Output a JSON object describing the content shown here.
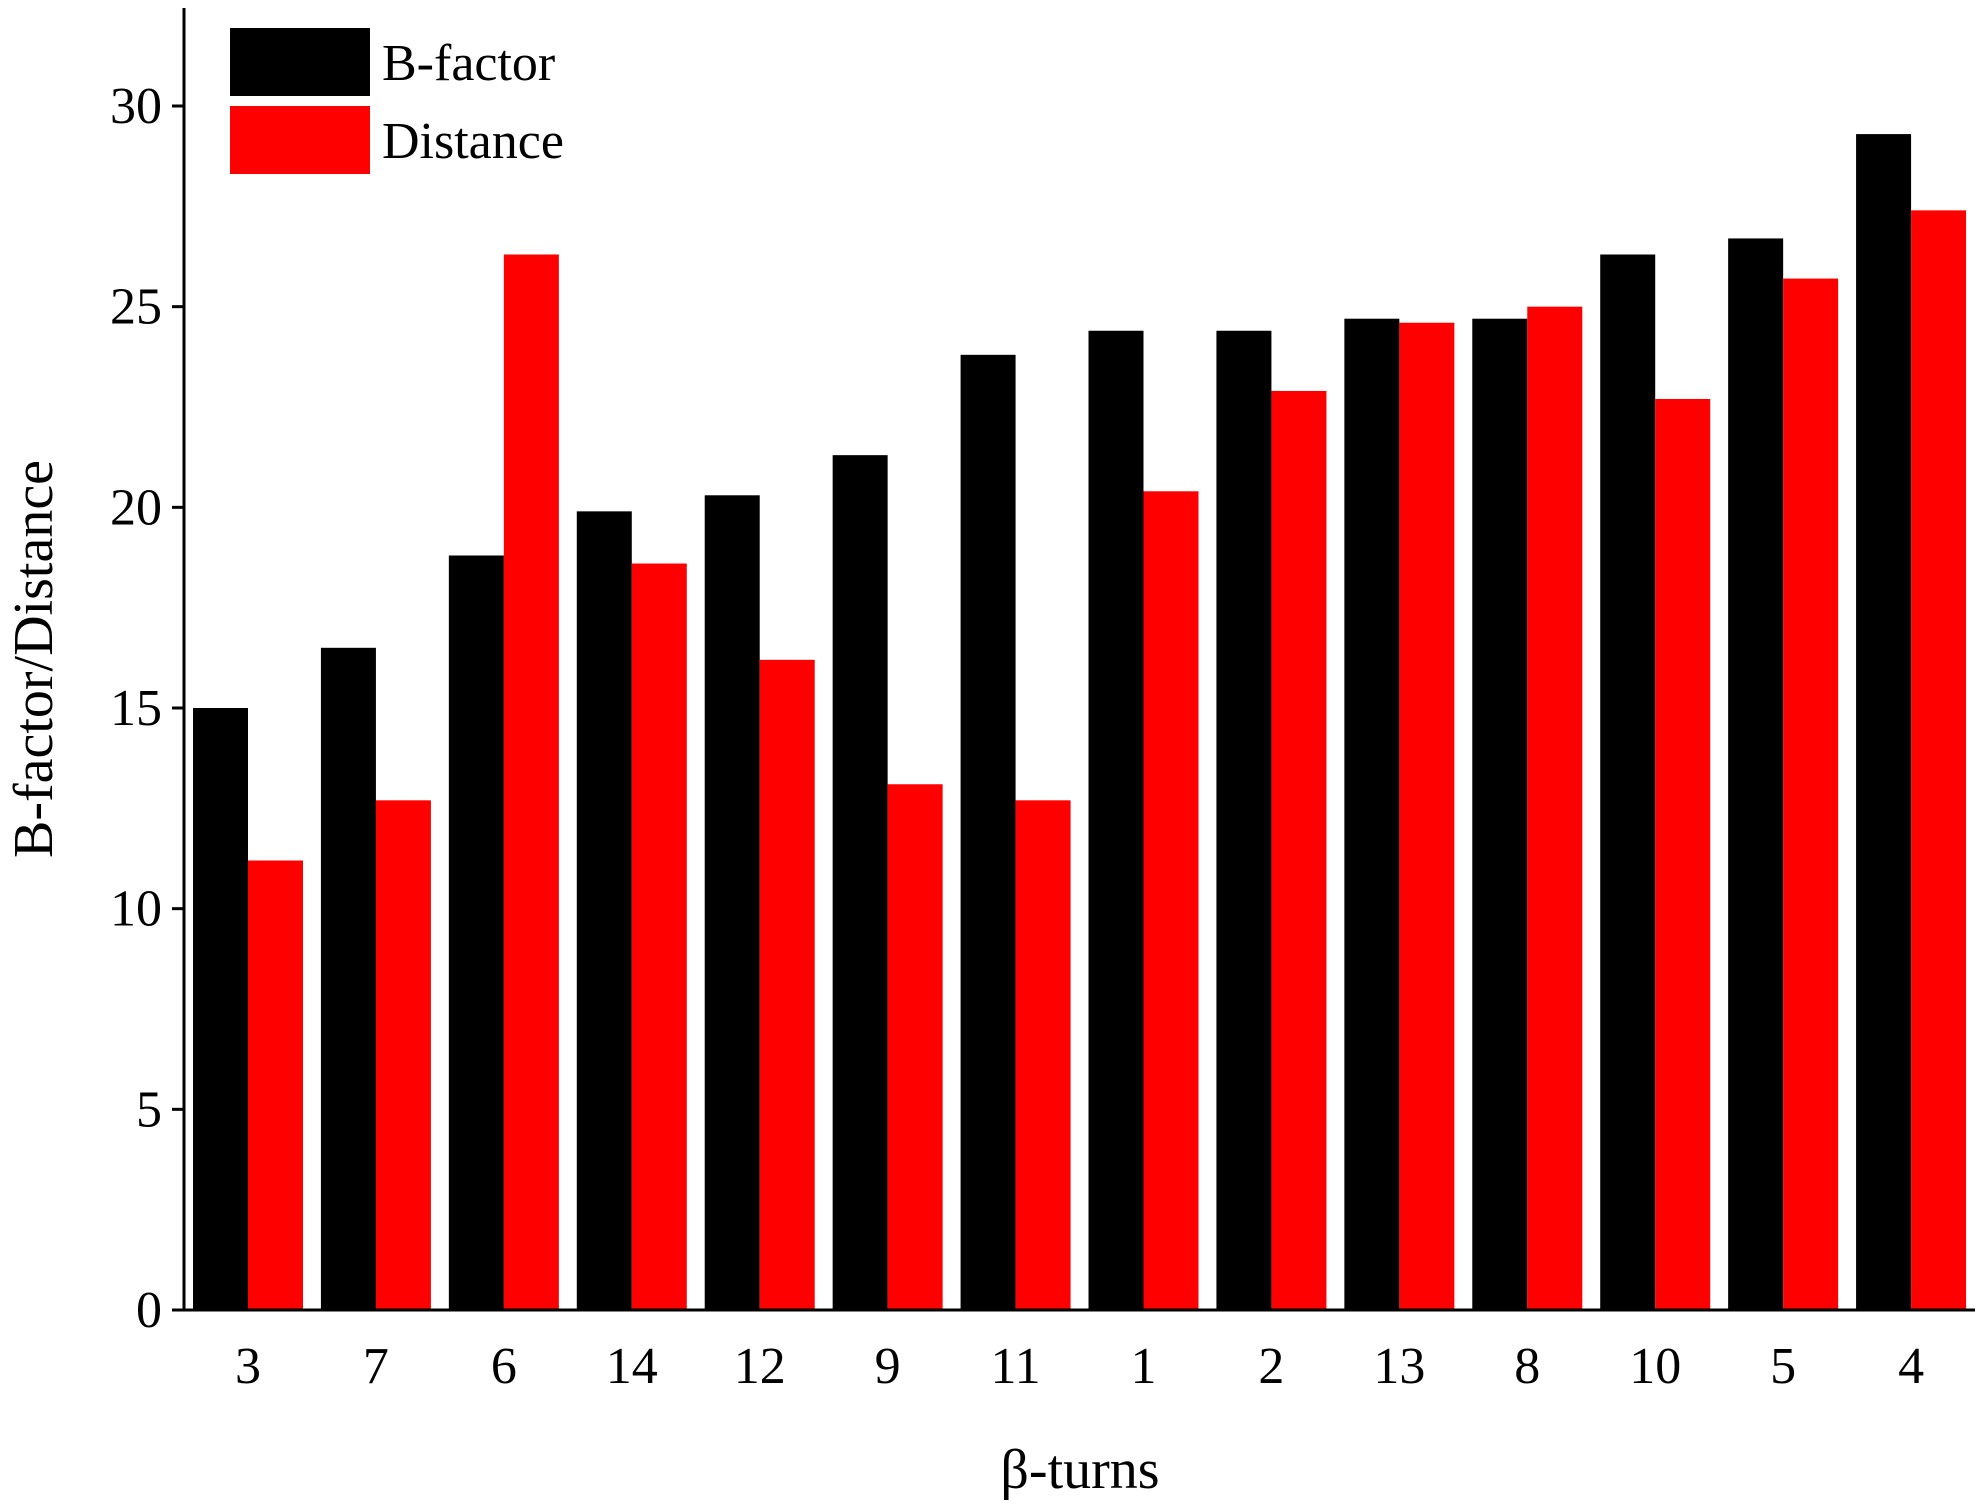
{
  "chart_data": {
    "type": "bar",
    "xlabel": "β-turns",
    "ylabel": "B-factor/Distance",
    "ylim": [
      0,
      32
    ],
    "yticks": [
      0,
      5,
      10,
      15,
      20,
      25,
      30
    ],
    "categories": [
      "3",
      "7",
      "6",
      "14",
      "12",
      "9",
      "11",
      "1",
      "2",
      "13",
      "8",
      "10",
      "5",
      "4"
    ],
    "series": [
      {
        "name": "B-factor",
        "color": "#000000",
        "values": [
          15.0,
          16.5,
          18.8,
          19.9,
          20.3,
          21.3,
          23.8,
          24.4,
          24.4,
          24.7,
          24.7,
          26.3,
          26.7,
          29.3
        ]
      },
      {
        "name": "Distance",
        "color": "#ff0000",
        "values": [
          11.2,
          12.7,
          26.3,
          18.6,
          16.2,
          13.1,
          12.7,
          20.4,
          22.9,
          24.6,
          25.0,
          22.7,
          25.7,
          27.4
        ]
      }
    ],
    "grid": false,
    "legend_position": "top-left"
  }
}
